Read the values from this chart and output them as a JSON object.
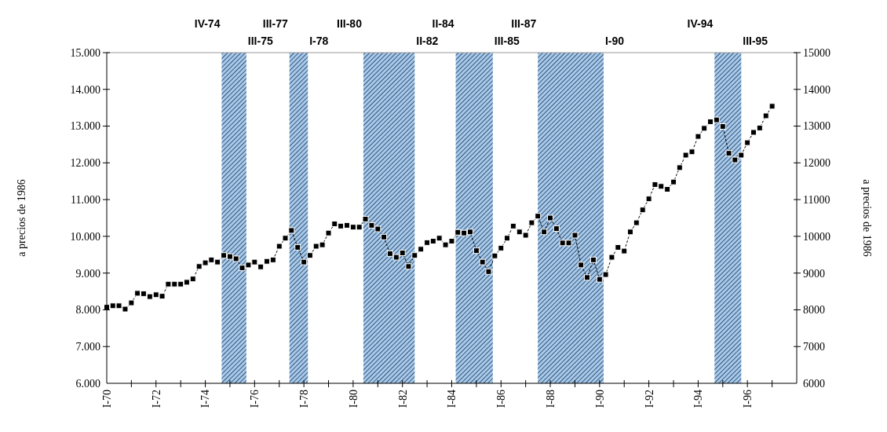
{
  "chart_data": {
    "type": "line",
    "ylabel": "a precios de 1986",
    "y2label": "a precios de 1986",
    "x": [
      "1970-01",
      "1970-04",
      "1970-07",
      "1970-10",
      "1971-01",
      "1971-04",
      "1971-07",
      "1971-10",
      "1972-01",
      "1972-04",
      "1972-07",
      "1972-10",
      "1973-01",
      "1973-04",
      "1973-07",
      "1973-10",
      "1974-01",
      "1974-04",
      "1974-07",
      "1974-10",
      "1975-01",
      "1975-04",
      "1975-07",
      "1975-10",
      "1976-01",
      "1976-04",
      "1976-07",
      "1976-10",
      "1977-01",
      "1977-04",
      "1977-07",
      "1977-10",
      "1978-01",
      "1978-04",
      "1978-07",
      "1978-10",
      "1979-01",
      "1979-04",
      "1979-07",
      "1979-10",
      "1980-01",
      "1980-04",
      "1980-07",
      "1980-10",
      "1981-01",
      "1981-04",
      "1981-07",
      "1981-10",
      "1982-01",
      "1982-04",
      "1982-07",
      "1982-10",
      "1983-01",
      "1983-04",
      "1983-07",
      "1983-10",
      "1984-01",
      "1984-04",
      "1984-07",
      "1984-10",
      "1985-01",
      "1985-04",
      "1985-07",
      "1985-10",
      "1986-01",
      "1986-04",
      "1986-07",
      "1986-10",
      "1987-01",
      "1987-04",
      "1987-07",
      "1987-10",
      "1988-01",
      "1988-04",
      "1988-07",
      "1988-10",
      "1989-01",
      "1989-04",
      "1989-07",
      "1989-10",
      "1990-01",
      "1990-04",
      "1990-07",
      "1990-10",
      "1991-01",
      "1991-04",
      "1991-07",
      "1991-10",
      "1992-01",
      "1992-04",
      "1992-07",
      "1992-10",
      "1993-01",
      "1993-04",
      "1993-07",
      "1993-10",
      "1994-01",
      "1994-04",
      "1994-07",
      "1994-10",
      "1995-01",
      "1995-04",
      "1995-07",
      "1995-10",
      "1996-01",
      "1996-04",
      "1996-07",
      "1996-10",
      "1997-01"
    ],
    "series": [
      {
        "color": "#000000",
        "values": [
          8070,
          8110,
          8110,
          8020,
          8190,
          8450,
          8440,
          8360,
          8410,
          8370,
          8700,
          8700,
          8700,
          8750,
          8840,
          9180,
          9280,
          9360,
          9300,
          9480,
          9450,
          9390,
          9140,
          9220,
          9300,
          9170,
          9320,
          9360,
          9730,
          9950,
          10160,
          9700,
          9300,
          9480,
          9730,
          9770,
          10090,
          10340,
          10280,
          10300,
          10250,
          10250,
          10470,
          10300,
          10200,
          9980,
          9530,
          9430,
          9550,
          9180,
          9480,
          9650,
          9830,
          9870,
          9950,
          9770,
          9870,
          10110,
          10090,
          10120,
          9610,
          9300,
          9040,
          9470,
          9680,
          9950,
          10280,
          10120,
          10030,
          10370,
          10550,
          10120,
          10500,
          10210,
          9820,
          9820,
          10030,
          9220,
          8880,
          9360,
          8830,
          8960,
          9430,
          9700,
          9600,
          10120,
          10370,
          10720,
          11020,
          11410,
          11360,
          11280,
          11480,
          11870,
          12210,
          12300,
          12720,
          12940,
          13120,
          13170,
          12990,
          12260,
          12080,
          12210,
          12550,
          12830,
          12950,
          13280,
          13540
        ]
      }
    ],
    "marker": "square",
    "line_style": "dashed",
    "xlim": [
      "1970-01",
      "1998-01"
    ],
    "xticks": [
      {
        "value": "1970-01",
        "label": "I-70"
      },
      {
        "value": "1971-01",
        "label": null
      },
      {
        "value": "1972-01",
        "label": "I-72"
      },
      {
        "value": "1973-01",
        "label": null
      },
      {
        "value": "1974-01",
        "label": "I-74"
      },
      {
        "value": "1975-01",
        "label": null
      },
      {
        "value": "1976-01",
        "label": "I-76"
      },
      {
        "value": "1977-01",
        "label": null
      },
      {
        "value": "1978-01",
        "label": "I-78"
      },
      {
        "value": "1979-01",
        "label": null
      },
      {
        "value": "1980-01",
        "label": "I-80"
      },
      {
        "value": "1981-01",
        "label": null
      },
      {
        "value": "1982-01",
        "label": "I-82"
      },
      {
        "value": "1983-01",
        "label": null
      },
      {
        "value": "1984-01",
        "label": "I-84"
      },
      {
        "value": "1985-01",
        "label": null
      },
      {
        "value": "1986-01",
        "label": "I-86"
      },
      {
        "value": "1987-01",
        "label": null
      },
      {
        "value": "1988-01",
        "label": "I-88"
      },
      {
        "value": "1989-01",
        "label": null
      },
      {
        "value": "1990-01",
        "label": "I-90"
      },
      {
        "value": "1991-01",
        "label": null
      },
      {
        "value": "1992-01",
        "label": "I-92"
      },
      {
        "value": "1993-01",
        "label": null
      },
      {
        "value": "1994-01",
        "label": "I-94"
      },
      {
        "value": "1995-01",
        "label": null
      },
      {
        "value": "1996-01",
        "label": "I-96"
      },
      {
        "value": "1997-01",
        "label": null
      }
    ],
    "ylim": [
      6000,
      15000
    ],
    "yticks": [
      {
        "value": 6000,
        "label": "6.000"
      },
      {
        "value": 7000,
        "label": "7.000"
      },
      {
        "value": 8000,
        "label": "8.000"
      },
      {
        "value": 9000,
        "label": "9.000"
      },
      {
        "value": 10000,
        "label": "10.000"
      },
      {
        "value": 11000,
        "label": "11.000"
      },
      {
        "value": 12000,
        "label": "12.000"
      },
      {
        "value": 13000,
        "label": "13.000"
      },
      {
        "value": 14000,
        "label": "14.000"
      },
      {
        "value": 15000,
        "label": "15.000"
      }
    ],
    "y2lim": [
      6000,
      15000
    ],
    "y2ticks": [
      6000,
      7000,
      8000,
      9000,
      10000,
      11000,
      12000,
      13000,
      14000,
      15000
    ],
    "bands": [
      {
        "axis": "x",
        "from": "1974-09",
        "to": "1975-09",
        "color": "#a6cbf0"
      },
      {
        "axis": "x",
        "from": "1977-06",
        "to": "1978-03",
        "color": "#a6cbf0"
      },
      {
        "axis": "x",
        "from": "1980-06",
        "to": "1982-07",
        "color": "#a6cbf0"
      },
      {
        "axis": "x",
        "from": "1984-03",
        "to": "1985-09",
        "color": "#a6cbf0"
      },
      {
        "axis": "x",
        "from": "1987-07",
        "to": "1990-03",
        "color": "#a6cbf0"
      },
      {
        "axis": "x",
        "from": "1994-09",
        "to": "1995-10",
        "color": "#a6cbf0"
      }
    ],
    "annotations": [
      "IV-74",
      "III-75",
      "III-77",
      "I-78",
      "III-80",
      "II-82",
      "II-84",
      "III-85",
      "III-87",
      "I-90",
      "IV-94",
      "III-95"
    ],
    "grid": false
  }
}
